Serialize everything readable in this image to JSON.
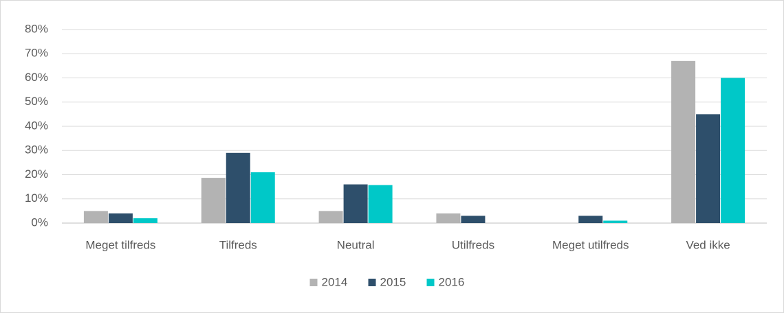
{
  "chart_data": {
    "type": "bar",
    "categories": [
      "Meget tilfreds",
      "Tilfreds",
      "Neutral",
      "Utilfreds",
      "Meget utilfreds",
      "Ved ikke"
    ],
    "series": [
      {
        "name": "2014",
        "color": "#b3b3b3",
        "values": [
          5,
          18.7,
          5,
          4,
          0,
          67
        ]
      },
      {
        "name": "2015",
        "color": "#2e4f6b",
        "values": [
          4,
          29,
          16,
          3,
          3,
          45
        ]
      },
      {
        "name": "2016",
        "color": "#00c8c8",
        "values": [
          2,
          21,
          15.7,
          0,
          1,
          60
        ]
      }
    ],
    "ylim": [
      0,
      80
    ],
    "yticks": [
      {
        "value": 0,
        "label": "0%"
      },
      {
        "value": 10,
        "label": "10%"
      },
      {
        "value": 20,
        "label": "20%"
      },
      {
        "value": 30,
        "label": "30%"
      },
      {
        "value": 40,
        "label": "40%"
      },
      {
        "value": 50,
        "label": "50%"
      },
      {
        "value": 60,
        "label": "60%"
      },
      {
        "value": 70,
        "label": "70%"
      },
      {
        "value": 80,
        "label": "80%"
      }
    ],
    "grid": true,
    "legend": "bottom"
  }
}
